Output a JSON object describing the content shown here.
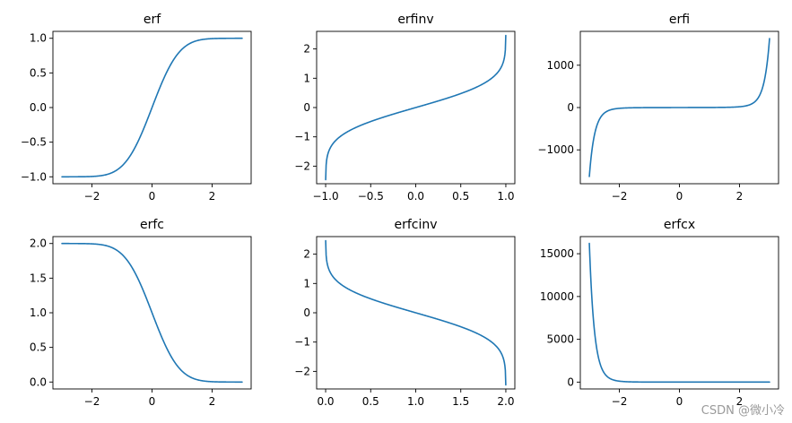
{
  "watermark": "CSDN @微小冷",
  "colors": {
    "series": "#1f77b4"
  },
  "chart_data": [
    {
      "type": "line",
      "title": "erf",
      "func": "erf",
      "x": [
        -3,
        -2.5,
        -2,
        -1.5,
        -1,
        -0.5,
        0,
        0.5,
        1,
        1.5,
        2,
        2.5,
        3
      ],
      "y": [
        -1.0,
        -0.9996,
        -0.9953,
        -0.9661,
        -0.8427,
        -0.5205,
        0.0,
        0.5205,
        0.8427,
        0.9661,
        0.9953,
        0.9996,
        1.0
      ],
      "xlim": [
        -3.3,
        3.3
      ],
      "ylim": [
        -1.1,
        1.1
      ],
      "xticks": [
        {
          "v": -2,
          "label": "−2"
        },
        {
          "v": 0,
          "label": "0"
        },
        {
          "v": 2,
          "label": "2"
        }
      ],
      "yticks": [
        {
          "v": -1.0,
          "label": "−1.0"
        },
        {
          "v": -0.5,
          "label": "−0.5"
        },
        {
          "v": 0.0,
          "label": "0.0"
        },
        {
          "v": 0.5,
          "label": "0.5"
        },
        {
          "v": 1.0,
          "label": "1.0"
        }
      ]
    },
    {
      "type": "line",
      "title": "erfinv",
      "func": "erfinv",
      "x": [
        -0.9995,
        -0.99,
        -0.9,
        -0.5,
        0,
        0.5,
        0.9,
        0.99,
        0.9995
      ],
      "y": [
        -2.46,
        -1.82,
        -1.16,
        -0.48,
        0.0,
        0.48,
        1.16,
        1.82,
        2.46
      ],
      "xlim": [
        -1.1,
        1.1
      ],
      "ylim": [
        -2.6,
        2.6
      ],
      "xticks": [
        {
          "v": -1.0,
          "label": "−1.0"
        },
        {
          "v": -0.5,
          "label": "−0.5"
        },
        {
          "v": 0.0,
          "label": "0.0"
        },
        {
          "v": 0.5,
          "label": "0.5"
        },
        {
          "v": 1.0,
          "label": "1.0"
        }
      ],
      "yticks": [
        {
          "v": -2,
          "label": "−2"
        },
        {
          "v": -1,
          "label": "−1"
        },
        {
          "v": 0,
          "label": "0"
        },
        {
          "v": 1,
          "label": "1"
        },
        {
          "v": 2,
          "label": "2"
        }
      ]
    },
    {
      "type": "line",
      "title": "erfi",
      "func": "erfi",
      "x": [
        -3,
        -2.5,
        -2,
        -1.5,
        -1,
        0,
        1,
        1.5,
        2,
        2.5,
        3
      ],
      "y": [
        -1629.99,
        -153.0,
        -18.56,
        -4.58,
        -1.65,
        0.0,
        1.65,
        4.58,
        18.56,
        153.0,
        1629.99
      ],
      "xlim": [
        -3.3,
        3.3
      ],
      "ylim": [
        -1800,
        1800
      ],
      "xticks": [
        {
          "v": -2,
          "label": "−2"
        },
        {
          "v": 0,
          "label": "0"
        },
        {
          "v": 2,
          "label": "2"
        }
      ],
      "yticks": [
        {
          "v": -1000,
          "label": "−1000"
        },
        {
          "v": 0,
          "label": "0"
        },
        {
          "v": 1000,
          "label": "1000"
        }
      ]
    },
    {
      "type": "line",
      "title": "erfc",
      "func": "erfc",
      "x": [
        -3,
        -2.5,
        -2,
        -1.5,
        -1,
        -0.5,
        0,
        0.5,
        1,
        1.5,
        2,
        2.5,
        3
      ],
      "y": [
        2.0,
        1.9996,
        1.9953,
        1.9661,
        1.8427,
        1.5205,
        1.0,
        0.4795,
        0.1573,
        0.0339,
        0.0047,
        0.0004,
        0.0
      ],
      "xlim": [
        -3.3,
        3.3
      ],
      "ylim": [
        -0.1,
        2.1
      ],
      "xticks": [
        {
          "v": -2,
          "label": "−2"
        },
        {
          "v": 0,
          "label": "0"
        },
        {
          "v": 2,
          "label": "2"
        }
      ],
      "yticks": [
        {
          "v": 0.0,
          "label": "0.0"
        },
        {
          "v": 0.5,
          "label": "0.5"
        },
        {
          "v": 1.0,
          "label": "1.0"
        },
        {
          "v": 1.5,
          "label": "1.5"
        },
        {
          "v": 2.0,
          "label": "2.0"
        }
      ]
    },
    {
      "type": "line",
      "title": "erfcinv",
      "func": "erfcinv",
      "x": [
        0.0005,
        0.01,
        0.1,
        0.5,
        1.0,
        1.5,
        1.9,
        1.99,
        1.9995
      ],
      "y": [
        2.46,
        1.82,
        1.16,
        0.48,
        0.0,
        -0.48,
        -1.16,
        -1.82,
        -2.46
      ],
      "xlim": [
        -0.1,
        2.1
      ],
      "ylim": [
        -2.6,
        2.6
      ],
      "xticks": [
        {
          "v": 0.0,
          "label": "0.0"
        },
        {
          "v": 0.5,
          "label": "0.5"
        },
        {
          "v": 1.0,
          "label": "1.0"
        },
        {
          "v": 1.5,
          "label": "1.5"
        },
        {
          "v": 2.0,
          "label": "2.0"
        }
      ],
      "yticks": [
        {
          "v": -2,
          "label": "−2"
        },
        {
          "v": -1,
          "label": "−1"
        },
        {
          "v": 0,
          "label": "0"
        },
        {
          "v": 1,
          "label": "1"
        },
        {
          "v": 2,
          "label": "2"
        }
      ]
    },
    {
      "type": "line",
      "title": "erfcx",
      "func": "erfcx",
      "x": [
        -3,
        -2.8,
        -2.5,
        -2,
        -1.5,
        -1,
        0,
        1,
        2,
        3
      ],
      "y": [
        16205.99,
        5072.0,
        1035.0,
        108.94,
        18.91,
        5.01,
        1.0,
        0.43,
        0.26,
        0.18
      ],
      "xlim": [
        -3.3,
        3.3
      ],
      "ylim": [
        -800,
        17000
      ],
      "xticks": [
        {
          "v": -2,
          "label": "−2"
        },
        {
          "v": 0,
          "label": "0"
        },
        {
          "v": 2,
          "label": "2"
        }
      ],
      "yticks": [
        {
          "v": 0,
          "label": "0"
        },
        {
          "v": 5000,
          "label": "5000"
        },
        {
          "v": 10000,
          "label": "10000"
        },
        {
          "v": 15000,
          "label": "15000"
        }
      ]
    }
  ]
}
